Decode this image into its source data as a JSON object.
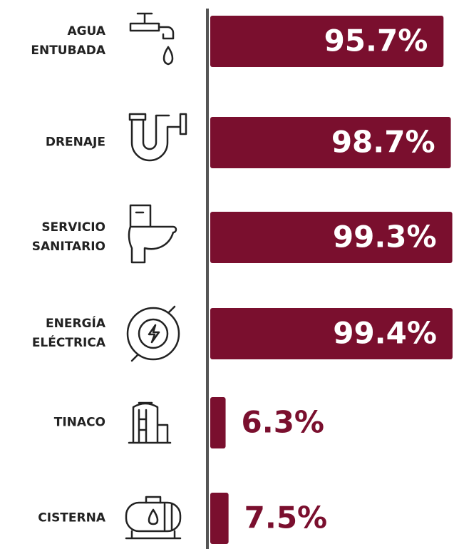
{
  "chart_data": {
    "type": "bar",
    "orientation": "horizontal",
    "categories": [
      "AGUA ENTUBADA",
      "DRENAJE",
      "SERVICIO SANITARIO",
      "ENERGÍA ELÉCTRICA",
      "TINACO",
      "CISTERNA"
    ],
    "values": [
      95.7,
      98.7,
      99.3,
      99.4,
      6.3,
      7.5
    ],
    "value_labels": [
      "95.7%",
      "98.7%",
      "99.3%",
      "99.4%",
      "6.3%",
      "7.5%"
    ],
    "color": "#7a0f2e"
  }
}
